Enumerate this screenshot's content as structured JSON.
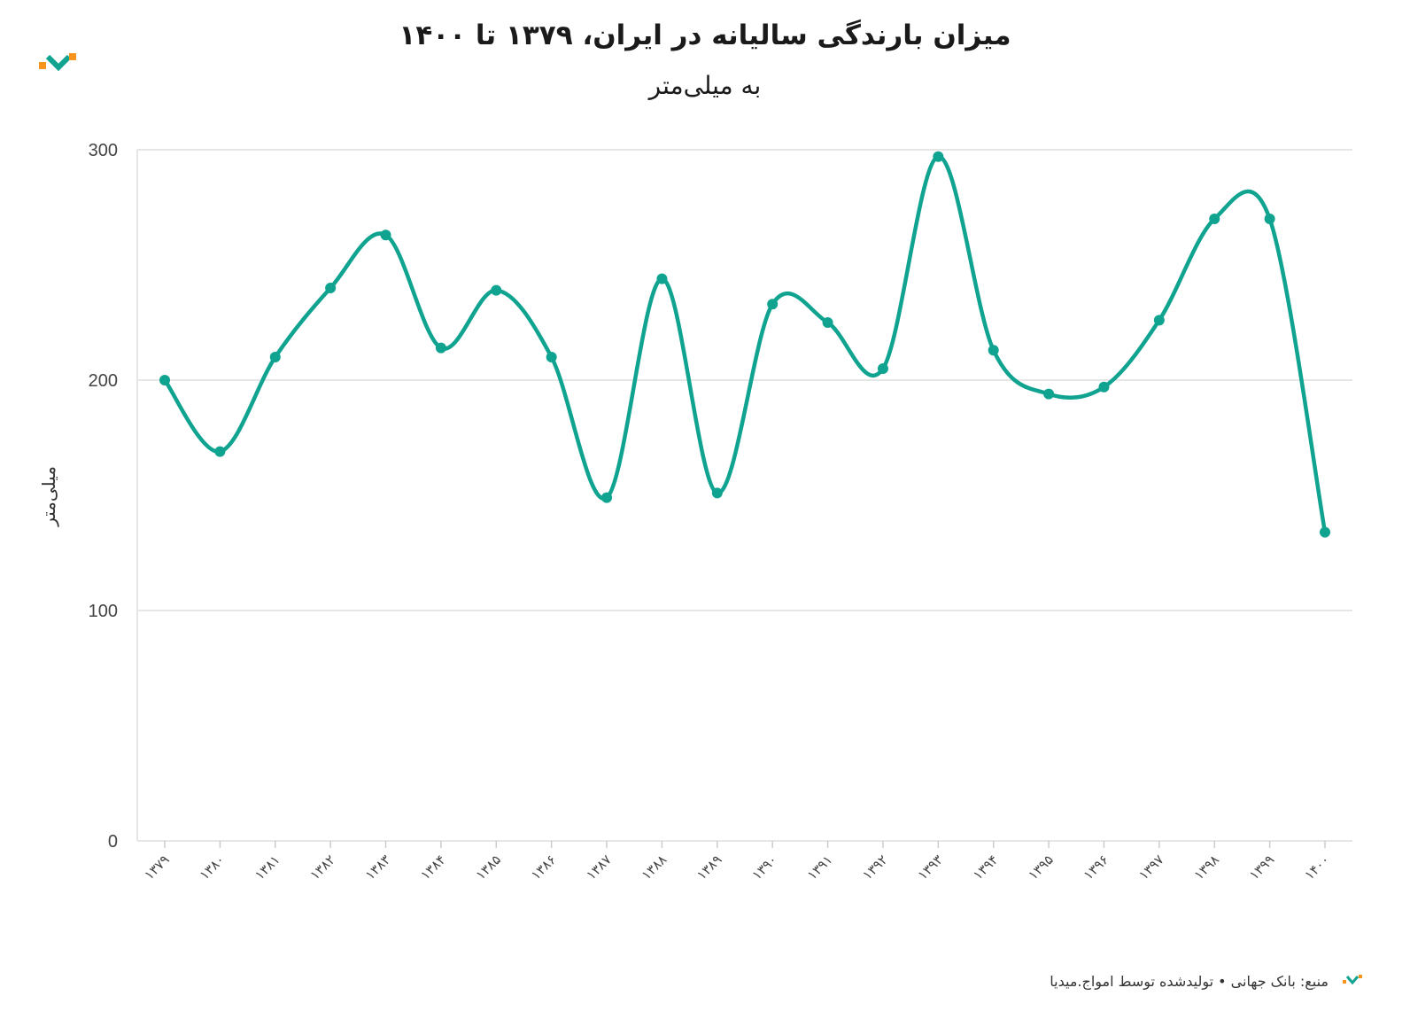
{
  "chart_data": {
    "type": "line",
    "title": "میزان بارندگی سالیانه در ایران، ۱۳۷۹ تا ۱۴۰۰",
    "subtitle": "به میلی‌متر",
    "ylabel": "میلی‌متر",
    "xlabel": "",
    "ylim": [
      0,
      300
    ],
    "yticks": [
      "0",
      "100",
      "200",
      "300"
    ],
    "grid": true,
    "categories": [
      "۱۳۷۹",
      "۱۳۸۰",
      "۱۳۸۱",
      "۱۳۸۲",
      "۱۳۸۳",
      "۱۳۸۴",
      "۱۳۸۵",
      "۱۳۸۶",
      "۱۳۸۷",
      "۱۳۸۸",
      "۱۳۸۹",
      "۱۳۹۰",
      "۱۳۹۱",
      "۱۳۹۲",
      "۱۳۹۳",
      "۱۳۹۴",
      "۱۳۹۵",
      "۱۳۹۶",
      "۱۳۹۷",
      "۱۳۹۸",
      "۱۳۹۹",
      "۱۴۰۰"
    ],
    "series": [
      {
        "values": [
          200,
          169,
          210,
          240,
          263,
          214,
          239,
          210,
          149,
          244,
          151,
          233,
          225,
          205,
          297,
          213,
          194,
          197,
          226,
          270,
          270,
          134
        ],
        "color": "#0fa390"
      }
    ]
  },
  "footer": {
    "source": "منبع: بانک جهانی • تولیدشده توسط امواج.میدیا"
  },
  "colors": {
    "line": "#0fa390",
    "grid": "#e6e6e6",
    "logo_orange": "#f7941d",
    "logo_teal": "#0fa390"
  }
}
